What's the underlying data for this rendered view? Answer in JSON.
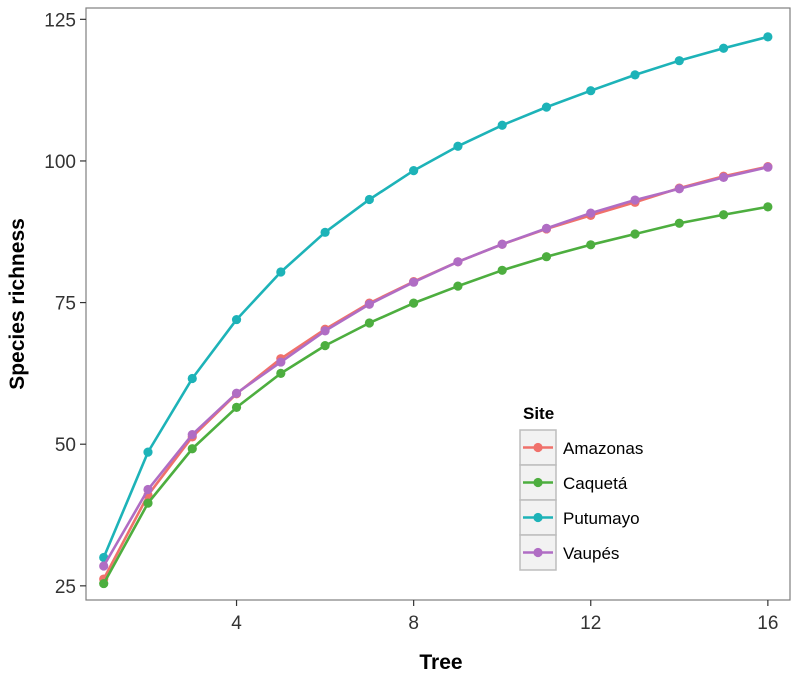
{
  "chart_data": {
    "type": "line",
    "xlabel": "Tree",
    "ylabel": "Species richness",
    "xlim": [
      0.6,
      16.5
    ],
    "ylim": [
      22.5,
      127
    ],
    "x_ticks": [
      4,
      8,
      12,
      16
    ],
    "y_ticks": [
      25,
      50,
      75,
      100,
      125
    ],
    "grid": false,
    "legend": {
      "title": "Site",
      "position": "bottom-right-inside"
    },
    "x": [
      1,
      2,
      3,
      4,
      5,
      6,
      7,
      8,
      9,
      10,
      11,
      12,
      13,
      14,
      15,
      16
    ],
    "series": [
      {
        "name": "Amazonas",
        "color": "#F0716B",
        "values": [
          26.2,
          41.0,
          51.3,
          58.9,
          65.1,
          70.3,
          74.9,
          78.7,
          82.2,
          85.3,
          88.0,
          90.4,
          92.7,
          95.2,
          97.3,
          99.0
        ]
      },
      {
        "name": "Caquetá",
        "color": "#4DAE3F",
        "values": [
          25.4,
          39.6,
          49.2,
          56.5,
          62.5,
          67.4,
          71.4,
          74.9,
          77.9,
          80.7,
          83.1,
          85.2,
          87.1,
          89.0,
          90.5,
          91.9
        ]
      },
      {
        "name": "Putumayo",
        "color": "#1DB3B8",
        "values": [
          30.0,
          48.6,
          61.6,
          72.0,
          80.4,
          87.4,
          93.2,
          98.3,
          102.6,
          106.3,
          109.5,
          112.4,
          115.2,
          117.7,
          119.9,
          121.9
        ]
      },
      {
        "name": "Vaupés",
        "color": "#B06DC4",
        "values": [
          28.5,
          42.0,
          51.7,
          59.0,
          64.5,
          70.0,
          74.7,
          78.6,
          82.2,
          85.3,
          88.1,
          90.8,
          93.1,
          95.1,
          97.1,
          98.9
        ]
      }
    ]
  }
}
